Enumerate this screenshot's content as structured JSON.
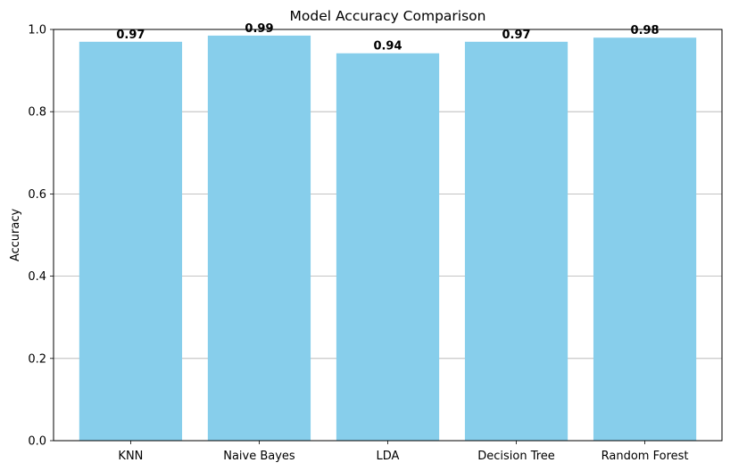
{
  "chart_data": {
    "type": "bar",
    "title": "Model Accuracy Comparison",
    "xlabel": "",
    "ylabel": "Accuracy",
    "categories": [
      "KNN",
      "Naive Bayes",
      "LDA",
      "Decision Tree",
      "Random Forest"
    ],
    "values": [
      0.97,
      0.985,
      0.942,
      0.97,
      0.98
    ],
    "data_labels": [
      "0.97",
      "0.99",
      "0.94",
      "0.97",
      "0.98"
    ],
    "ylim": [
      0,
      1.0
    ],
    "yticks": [
      0.0,
      0.2,
      0.4,
      0.6,
      0.8,
      1.0
    ],
    "ytick_labels": [
      "0.0",
      "0.2",
      "0.4",
      "0.6",
      "0.8",
      "1.0"
    ],
    "grid": "y-axis",
    "bar_color": "#87CEEB",
    "grid_color": "#b0b0b0"
  }
}
